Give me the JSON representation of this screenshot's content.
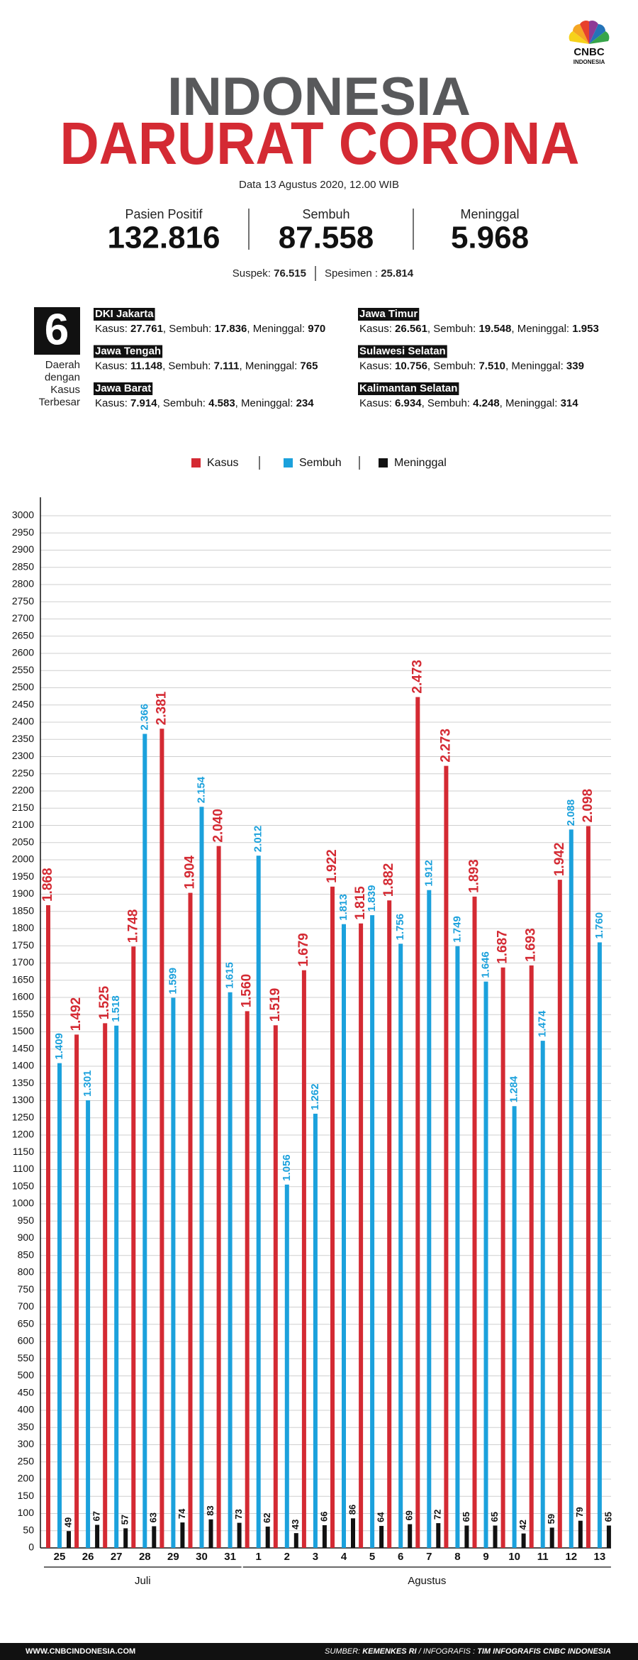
{
  "header": {
    "title_line1": "INDONESIA",
    "title_line2": "DARURAT CORONA",
    "date": "Data 13 Agustus 2020, 12.00 WIB",
    "logo": "CNBC",
    "logo_sub": "INDONESIA"
  },
  "stats": [
    {
      "label": "Pasien Positif",
      "value": "132.816"
    },
    {
      "label": "Sembuh",
      "value": "87.558"
    },
    {
      "label": "Meninggal",
      "value": "5.968"
    }
  ],
  "tests": [
    {
      "label": "Suspek:",
      "value": "76.515"
    },
    {
      "label": "Spesimen :",
      "value": "25.814"
    }
  ],
  "regions_box": {
    "number": "6",
    "caption": [
      "Daerah",
      "dengan",
      "Kasus",
      "Terbesar"
    ]
  },
  "regions": [
    {
      "name": "DKI Jakarta",
      "stats": [
        {
          "label": "Kasus:",
          "value": "27.761"
        },
        {
          "label": ", Sembuh:",
          "value": "17.836"
        },
        {
          "label": ", Meninggal:",
          "value": "970"
        }
      ]
    },
    {
      "name": "Jawa Tengah",
      "stats": [
        {
          "label": "Kasus:",
          "value": "11.148"
        },
        {
          "label": ", Sembuh:",
          "value": "7.111"
        },
        {
          "label": ",  Meninggal:",
          "value": "765"
        }
      ]
    },
    {
      "name": "Jawa Barat",
      "stats": [
        {
          "label": "Kasus:",
          "value": "7.914"
        },
        {
          "label": ", Sembuh:",
          "value": "4.583"
        },
        {
          "label": ", Meninggal:",
          "value": "234"
        }
      ]
    },
    {
      "name": "Jawa Timur",
      "stats": [
        {
          "label": "Kasus:",
          "value": "26.561"
        },
        {
          "label": ", Sembuh:",
          "value": "19.548"
        },
        {
          "label": ", Meninggal:",
          "value": "1.953"
        }
      ]
    },
    {
      "name": "Sulawesi Selatan",
      "stats": [
        {
          "label": "Kasus:",
          "value": "10.756"
        },
        {
          "label": ", Sembuh:",
          "value": "7.510"
        },
        {
          "label": ", Meninggal:",
          "value": "339"
        }
      ]
    },
    {
      "name": "Kalimantan Selatan",
      "stats": [
        {
          "label": "Kasus:",
          "value": "6.934"
        },
        {
          "label": ", Sembuh:",
          "value": "4.248"
        },
        {
          "label": ", Meninggal:",
          "value": "314"
        }
      ]
    }
  ],
  "chart_data": {
    "type": "bar",
    "legend": "top",
    "grid": true,
    "categories": [
      "25",
      "26",
      "27",
      "28",
      "29",
      "30",
      "31",
      "1",
      "2",
      "3",
      "4",
      "5",
      "6",
      "7",
      "8",
      "9",
      "10",
      "11",
      "12",
      "13"
    ],
    "months": [
      "Juli",
      "Agustus"
    ],
    "series": [
      {
        "name": "Kasus",
        "color": "#d42a33",
        "values": [
          1868,
          1492,
          1525,
          1748,
          2381,
          1904,
          2040,
          1560,
          1519,
          1679,
          1922,
          1815,
          1882,
          2473,
          2273,
          1893,
          1687,
          1693,
          1942,
          2098
        ],
        "value_labels": [
          "1.868",
          "1.492",
          "1.525",
          "1.748",
          "2.381",
          "1.904",
          "2.040",
          "1.560",
          "1.519",
          "1.679",
          "1.922",
          "1.815",
          "1.882",
          "2.473",
          "2.273",
          "1.893",
          "1.687",
          "1.693",
          "1.942",
          "2.098"
        ]
      },
      {
        "name": "Sembuh",
        "color": "#1ba1dc",
        "values": [
          1409,
          1301,
          1518,
          2366,
          1599,
          2154,
          1615,
          2012,
          1056,
          1262,
          1813,
          1839,
          1756,
          1912,
          1749,
          1646,
          1284,
          1474,
          2088,
          1760
        ],
        "value_labels": [
          "1.409",
          "1.301",
          "1.518",
          "2.366",
          "1.599",
          "2.154",
          "1.615",
          "2.012",
          "1.056",
          "1.262",
          "1.813",
          "1.839",
          "1.756",
          "1.912",
          "1.749",
          "1.646",
          "1.284",
          "1.474",
          "2.088",
          "1.760"
        ]
      },
      {
        "name": "Meninggal",
        "color": "#111111",
        "values": [
          49,
          67,
          57,
          63,
          74,
          83,
          73,
          62,
          43,
          66,
          86,
          64,
          69,
          72,
          65,
          65,
          42,
          59,
          79,
          65
        ]
      }
    ],
    "ylim": [
      0,
      3000
    ],
    "yticks": [
      0,
      50,
      100,
      150,
      200,
      250,
      300,
      350,
      400,
      450,
      500,
      550,
      600,
      650,
      700,
      750,
      800,
      850,
      900,
      950,
      1000,
      1050,
      1100,
      1150,
      1200,
      1250,
      1300,
      1350,
      1400,
      1450,
      1500,
      1550,
      1600,
      1650,
      1700,
      1750,
      1800,
      1850,
      1900,
      1950,
      2000,
      2050,
      2100,
      2150,
      2200,
      2250,
      2300,
      2350,
      2400,
      2450,
      2500,
      2550,
      2600,
      2650,
      2700,
      2750,
      2800,
      2850,
      2900,
      2950,
      3000
    ]
  },
  "footer": {
    "site": "WWW.CNBCINDONESIA.COM",
    "source_label": "SUMBER: ",
    "source": "KEMENKES RI",
    "credit_label": " / INFOGRAFIS : ",
    "credit": "TIM INFOGRAFIS CNBC INDONESIA"
  }
}
